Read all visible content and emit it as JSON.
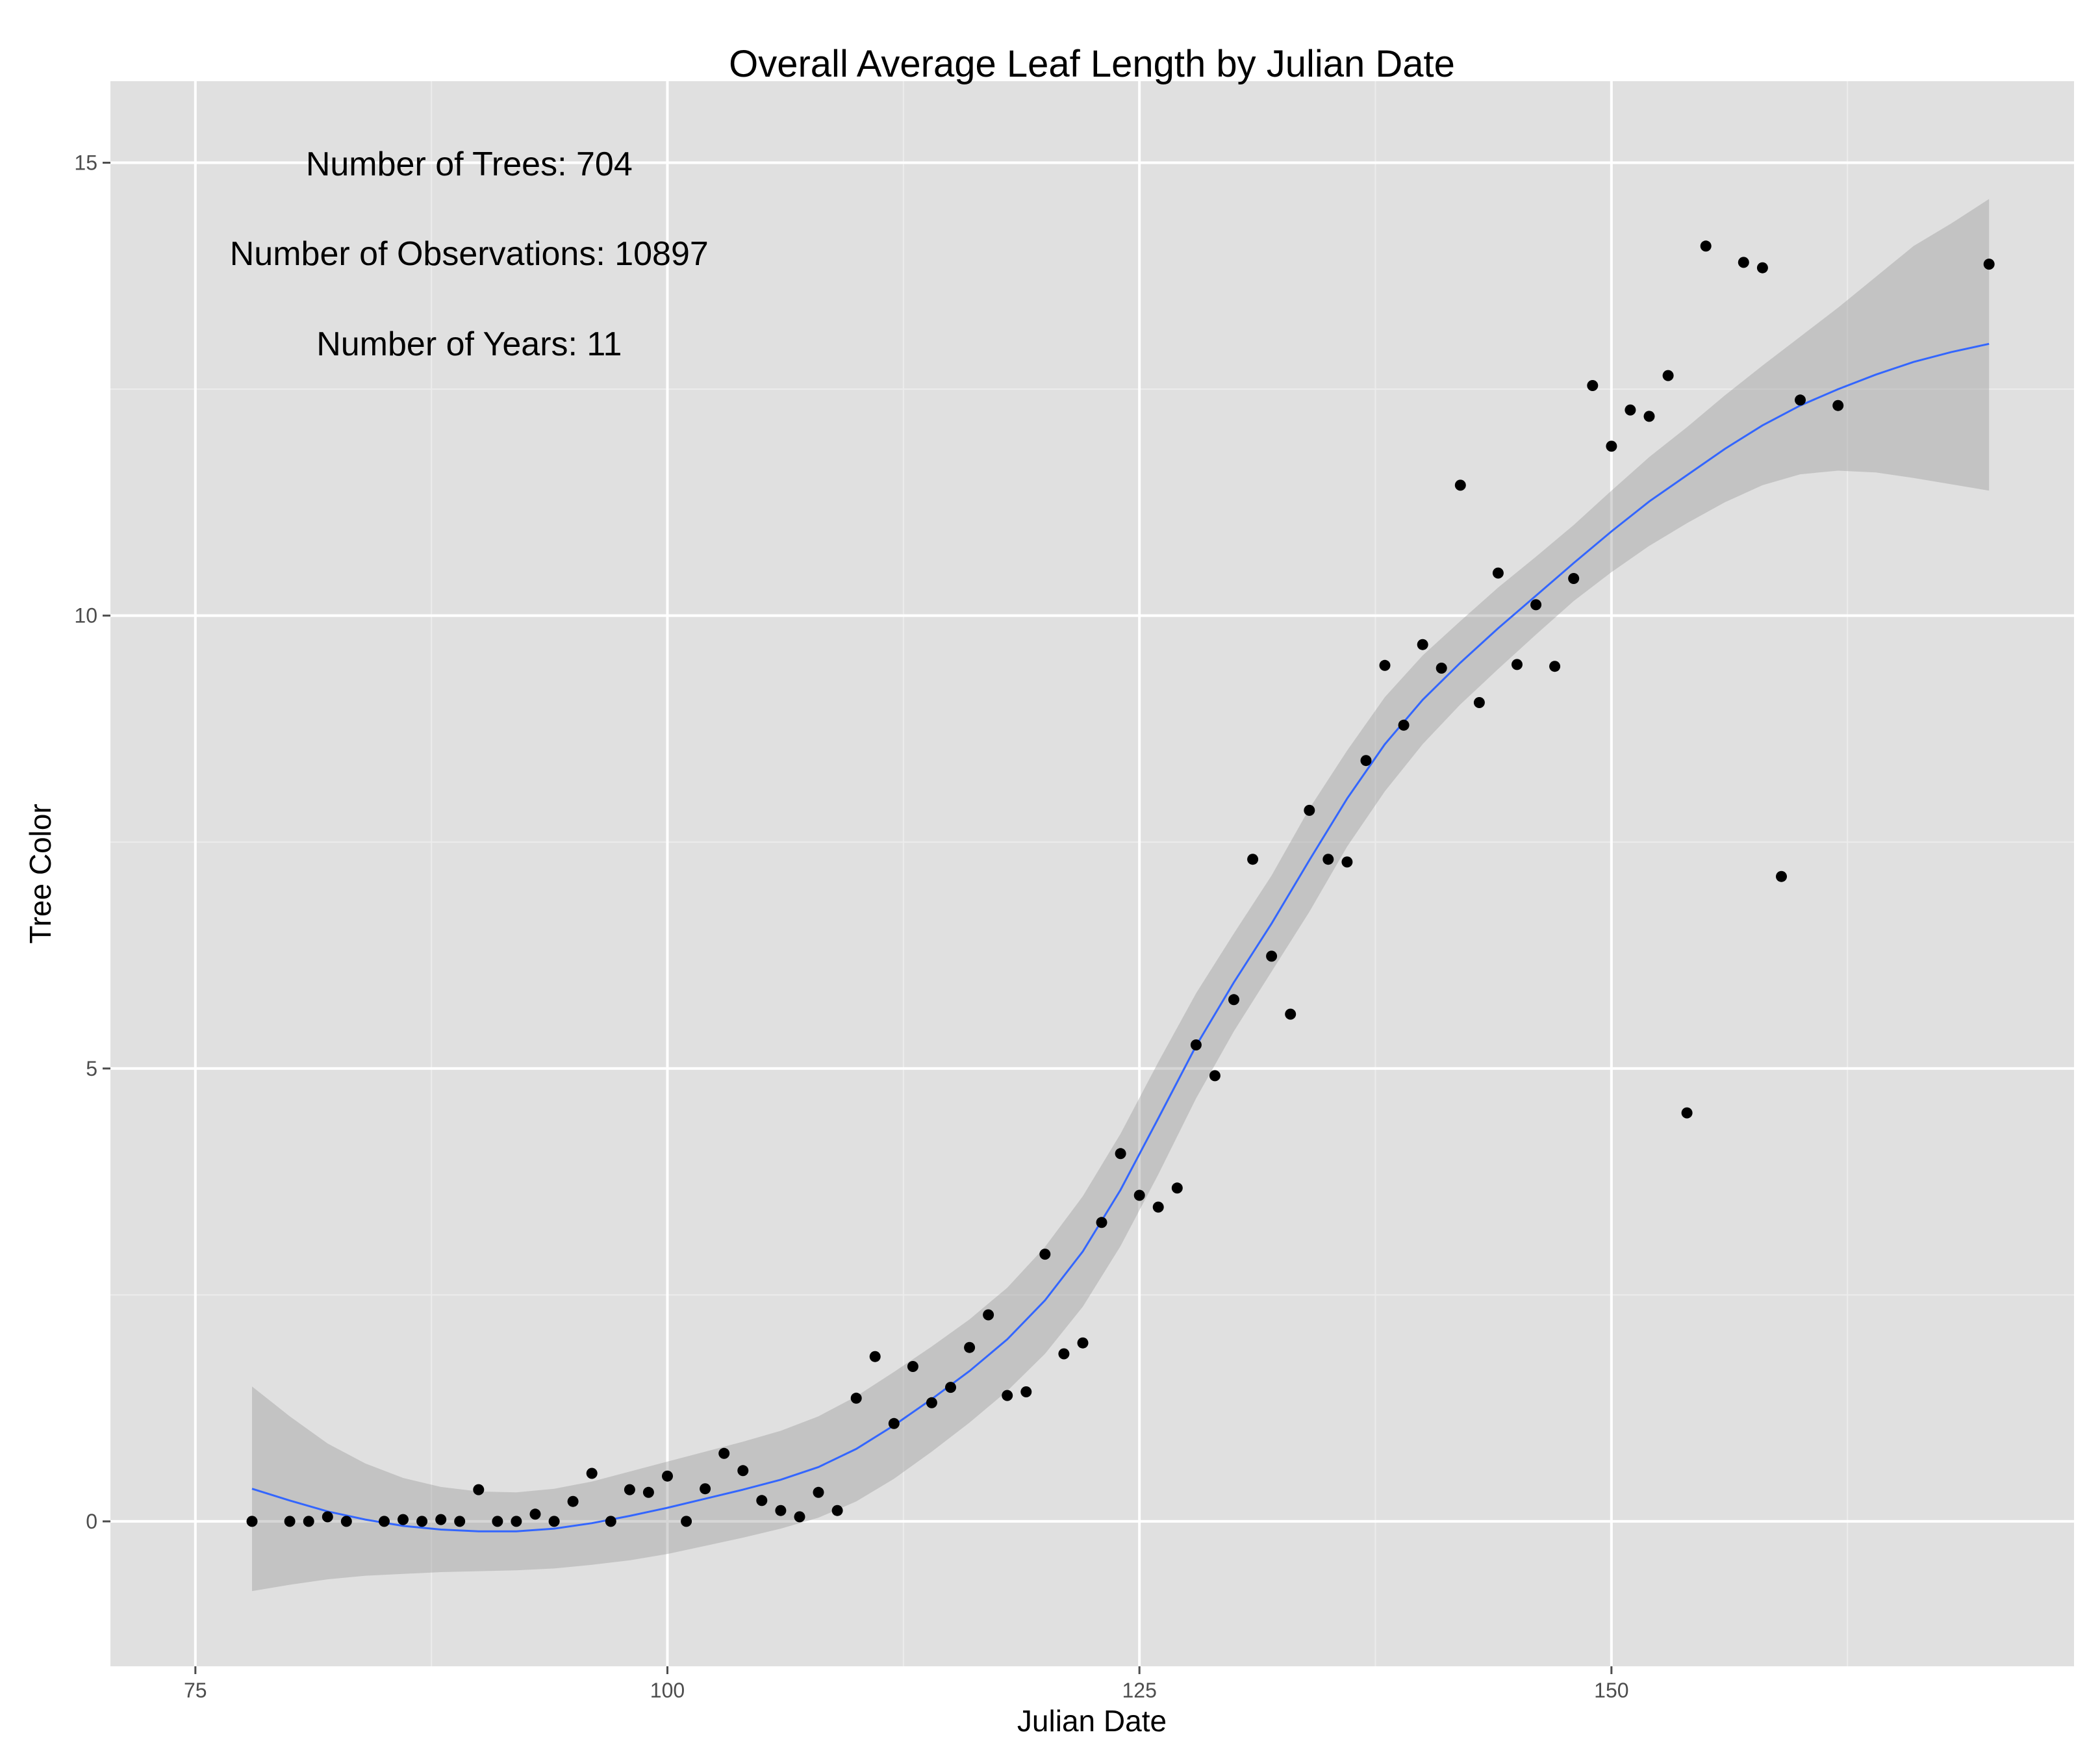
{
  "chart_data": {
    "type": "scatter",
    "title": "Overall Average Leaf Length by Julian Date",
    "xlabel": "Julian Date",
    "ylabel": "Tree Color",
    "xlim": [
      70.5,
      174.5
    ],
    "ylim": [
      -1.6,
      15.9
    ],
    "x_ticks": [
      75,
      100,
      125,
      150
    ],
    "y_ticks": [
      0,
      5,
      10,
      15
    ],
    "grid": true,
    "annotations": [
      {
        "text": "Number of Trees: 704",
        "x": 89.5,
        "y": 14.96
      },
      {
        "text": "Number of Observations: 10897",
        "x": 89.5,
        "y": 13.97
      },
      {
        "text": "Number of Years: 11",
        "x": 89.5,
        "y": 12.97
      }
    ],
    "colors": {
      "panel": "#e0e0e0",
      "grid_major": "#ffffff",
      "grid_minor": "#ececec",
      "points": "#000000",
      "smooth_line": "#3366ff",
      "confidence_band": "#999999"
    },
    "points": [
      {
        "x": 78,
        "y": 0.0
      },
      {
        "x": 80,
        "y": 0.0
      },
      {
        "x": 81,
        "y": 0.0
      },
      {
        "x": 82,
        "y": 0.05
      },
      {
        "x": 83,
        "y": 0.0
      },
      {
        "x": 85,
        "y": 0.0
      },
      {
        "x": 86,
        "y": 0.02
      },
      {
        "x": 87,
        "y": 0.0
      },
      {
        "x": 88,
        "y": 0.02
      },
      {
        "x": 89,
        "y": 0.0
      },
      {
        "x": 90,
        "y": 0.35
      },
      {
        "x": 91,
        "y": 0.0
      },
      {
        "x": 92,
        "y": 0.0
      },
      {
        "x": 93,
        "y": 0.08
      },
      {
        "x": 94,
        "y": 0.0
      },
      {
        "x": 95,
        "y": 0.22
      },
      {
        "x": 96,
        "y": 0.53
      },
      {
        "x": 97,
        "y": 0.0
      },
      {
        "x": 98,
        "y": 0.35
      },
      {
        "x": 99,
        "y": 0.32
      },
      {
        "x": 100,
        "y": 0.5
      },
      {
        "x": 101,
        "y": 0.0
      },
      {
        "x": 102,
        "y": 0.36
      },
      {
        "x": 103,
        "y": 0.75
      },
      {
        "x": 104,
        "y": 0.56
      },
      {
        "x": 105,
        "y": 0.23
      },
      {
        "x": 106,
        "y": 0.12
      },
      {
        "x": 107,
        "y": 0.05
      },
      {
        "x": 108,
        "y": 0.32
      },
      {
        "x": 109,
        "y": 0.12
      },
      {
        "x": 110,
        "y": 1.36
      },
      {
        "x": 111,
        "y": 1.82
      },
      {
        "x": 112,
        "y": 1.08
      },
      {
        "x": 113,
        "y": 1.71
      },
      {
        "x": 114,
        "y": 1.31
      },
      {
        "x": 115,
        "y": 1.48
      },
      {
        "x": 116,
        "y": 1.92
      },
      {
        "x": 117,
        "y": 2.28
      },
      {
        "x": 118,
        "y": 1.39
      },
      {
        "x": 119,
        "y": 1.43
      },
      {
        "x": 120,
        "y": 2.95
      },
      {
        "x": 121,
        "y": 1.85
      },
      {
        "x": 122,
        "y": 1.97
      },
      {
        "x": 123,
        "y": 3.3
      },
      {
        "x": 124,
        "y": 4.06
      },
      {
        "x": 125,
        "y": 3.6
      },
      {
        "x": 126,
        "y": 3.47
      },
      {
        "x": 127,
        "y": 3.68
      },
      {
        "x": 128,
        "y": 5.26
      },
      {
        "x": 129,
        "y": 4.92
      },
      {
        "x": 130,
        "y": 5.76
      },
      {
        "x": 131,
        "y": 7.31
      },
      {
        "x": 132,
        "y": 6.24
      },
      {
        "x": 133,
        "y": 5.6
      },
      {
        "x": 134,
        "y": 7.85
      },
      {
        "x": 135,
        "y": 7.31
      },
      {
        "x": 136,
        "y": 7.28
      },
      {
        "x": 137,
        "y": 8.4
      },
      {
        "x": 138,
        "y": 9.45
      },
      {
        "x": 139,
        "y": 8.79
      },
      {
        "x": 140,
        "y": 9.68
      },
      {
        "x": 141,
        "y": 9.42
      },
      {
        "x": 142,
        "y": 11.44
      },
      {
        "x": 143,
        "y": 9.04
      },
      {
        "x": 144,
        "y": 10.47
      },
      {
        "x": 145,
        "y": 9.46
      },
      {
        "x": 146,
        "y": 10.12
      },
      {
        "x": 147,
        "y": 9.44
      },
      {
        "x": 148,
        "y": 10.41
      },
      {
        "x": 149,
        "y": 12.54
      },
      {
        "x": 150,
        "y": 11.87
      },
      {
        "x": 151,
        "y": 12.27
      },
      {
        "x": 152,
        "y": 12.2
      },
      {
        "x": 153,
        "y": 12.65
      },
      {
        "x": 154,
        "y": 4.51
      },
      {
        "x": 155,
        "y": 14.08
      },
      {
        "x": 157,
        "y": 13.9
      },
      {
        "x": 158,
        "y": 13.84
      },
      {
        "x": 159,
        "y": 7.12
      },
      {
        "x": 160,
        "y": 12.38
      },
      {
        "x": 162,
        "y": 12.32
      },
      {
        "x": 170,
        "y": 13.88
      }
    ],
    "smooth": {
      "x": [
        78,
        80,
        82,
        84,
        86,
        88,
        90,
        92,
        94,
        96,
        98,
        100,
        102,
        104,
        106,
        108,
        110,
        112,
        114,
        116,
        118,
        120,
        122,
        124,
        126,
        128,
        130,
        132,
        134,
        136,
        138,
        140,
        142,
        144,
        146,
        148,
        150,
        152,
        154,
        156,
        158,
        160,
        162,
        164,
        166,
        168,
        170
      ],
      "y": [
        0.36,
        0.23,
        0.11,
        0.02,
        -0.05,
        -0.09,
        -0.11,
        -0.11,
        -0.08,
        -0.02,
        0.06,
        0.15,
        0.25,
        0.35,
        0.46,
        0.6,
        0.8,
        1.06,
        1.35,
        1.66,
        2.01,
        2.44,
        2.98,
        3.66,
        4.45,
        5.25,
        5.95,
        6.6,
        7.3,
        7.98,
        8.58,
        9.07,
        9.48,
        9.86,
        10.22,
        10.58,
        10.93,
        11.26,
        11.55,
        11.84,
        12.1,
        12.32,
        12.5,
        12.66,
        12.8,
        12.91,
        13.0
      ],
      "ymin": [
        -0.77,
        -0.7,
        -0.64,
        -0.6,
        -0.58,
        -0.56,
        -0.55,
        -0.54,
        -0.52,
        -0.48,
        -0.43,
        -0.36,
        -0.27,
        -0.18,
        -0.08,
        0.04,
        0.22,
        0.47,
        0.77,
        1.09,
        1.44,
        1.85,
        2.37,
        3.04,
        3.83,
        4.67,
        5.41,
        6.07,
        6.73,
        7.45,
        8.06,
        8.58,
        9.02,
        9.41,
        9.79,
        10.16,
        10.48,
        10.77,
        11.02,
        11.25,
        11.44,
        11.56,
        11.6,
        11.58,
        11.52,
        11.45,
        11.38
      ],
      "ymax": [
        1.49,
        1.16,
        0.86,
        0.64,
        0.48,
        0.38,
        0.33,
        0.32,
        0.36,
        0.44,
        0.55,
        0.66,
        0.77,
        0.88,
        1.0,
        1.16,
        1.38,
        1.65,
        1.93,
        2.23,
        2.58,
        3.03,
        3.59,
        4.28,
        5.07,
        5.83,
        6.49,
        7.13,
        7.87,
        8.51,
        9.1,
        9.56,
        9.94,
        10.31,
        10.65,
        11.0,
        11.38,
        11.75,
        12.08,
        12.43,
        12.76,
        13.08,
        13.4,
        13.74,
        14.08,
        14.33,
        14.6
      ]
    }
  }
}
